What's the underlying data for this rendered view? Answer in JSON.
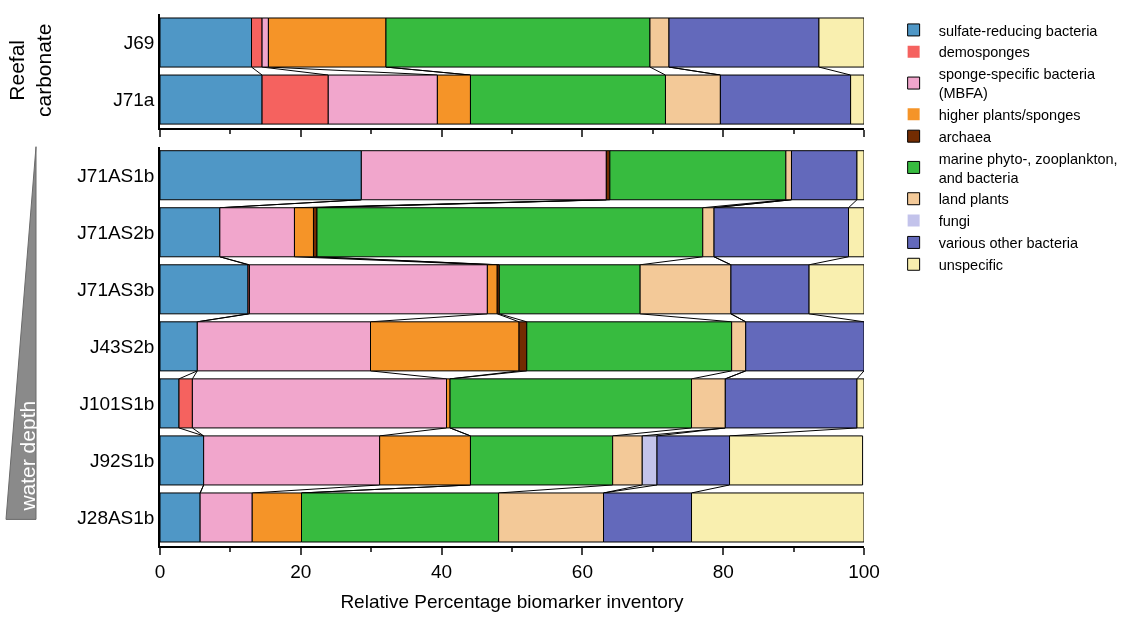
{
  "chart_data": [
    {
      "type": "bar",
      "orientation": "horizontal",
      "stacked": true,
      "categories": [
        "J69",
        "J71a"
      ],
      "xlim": [
        0,
        100
      ],
      "xticks": [
        0,
        20,
        40,
        60,
        80,
        100
      ],
      "tick_labels": "y",
      "annotations": [
        "Reefal\ncarbonate"
      ],
      "series": [
        {
          "color": "#4f97c6",
          "values": [
            13.0,
            14.5
          ]
        },
        {
          "color": "#f5625f",
          "values": [
            1.5,
            9.4
          ]
        },
        {
          "color": "#f1a6cc",
          "values": [
            0.9,
            15.5
          ]
        },
        {
          "color": "#f59428",
          "values": [
            16.7,
            4.7
          ]
        },
        {
          "color": "#732c02",
          "values": [
            0,
            0
          ]
        },
        {
          "color": "#37bb3f",
          "values": [
            37.5,
            27.7
          ]
        },
        {
          "color": "#f3c998",
          "values": [
            2.7,
            7.8
          ]
        },
        {
          "color": "#c3c3eb",
          "values": [
            0,
            0
          ]
        },
        {
          "color": "#6369bb",
          "values": [
            21.3,
            18.5
          ]
        },
        {
          "color": "#f9efaf",
          "values": [
            6.4,
            1.9
          ]
        }
      ]
    },
    {
      "type": "bar",
      "orientation": "horizontal",
      "stacked": true,
      "categories": [
        "J71AS1b",
        "J71AS2b",
        "J71AS3b",
        "J43S2b",
        "J101S1b",
        "J92S1b",
        "J28AS1b"
      ],
      "xlim": [
        0,
        100
      ],
      "xticks": [
        0,
        20,
        40,
        60,
        80,
        100
      ],
      "xlabel": "Relative Percentage biomarker inventory",
      "legend": "right",
      "annotations": [
        "water depth"
      ],
      "series": [
        {
          "name": "sulfate-reducing bacteria",
          "color": "#4f97c6",
          "values": [
            28.6,
            8.5,
            12.5,
            5.3,
            2.7,
            6.2,
            5.7
          ]
        },
        {
          "name": "demosponges",
          "color": "#f5625f",
          "values": [
            0,
            0,
            0.2,
            0,
            1.9,
            0,
            0
          ]
        },
        {
          "name": "sponge-specific bacteria\n(MBFA)",
          "color": "#f1a6cc",
          "values": [
            34.8,
            10.6,
            33.8,
            24.6,
            36.1,
            25.0,
            7.4
          ]
        },
        {
          "name": "higher plants/sponges",
          "color": "#f59428",
          "values": [
            0,
            2.7,
            1.4,
            21.1,
            0.5,
            12.9,
            7.0
          ]
        },
        {
          "name": "archaea",
          "color": "#732c02",
          "values": [
            0.5,
            0.5,
            0.3,
            1.1,
            0,
            null,
            0
          ]
        },
        {
          "name": "marine phyto-, zooplankton,\nand bacteria",
          "color": "#37bb3f",
          "values": [
            25.0,
            54.8,
            20.0,
            29.1,
            34.3,
            20.2,
            28.0
          ]
        },
        {
          "name": "land plants",
          "color": "#f3c998",
          "values": [
            0.8,
            1.6,
            12.9,
            2.0,
            4.8,
            4.2,
            14.9
          ]
        },
        {
          "name": "fungi",
          "color": "#c3c3eb",
          "values": [
            0,
            0,
            0,
            0,
            0,
            2.1,
            0
          ]
        },
        {
          "name": "various other bacteria",
          "color": "#6369bb",
          "values": [
            9.3,
            19.1,
            11.1,
            16.8,
            18.7,
            10.3,
            12.5
          ]
        },
        {
          "name": "unspecific",
          "color": "#f9efaf",
          "values": [
            1.0,
            2.2,
            7.8,
            0,
            1.0,
            18.9,
            24.5
          ]
        }
      ]
    }
  ]
}
